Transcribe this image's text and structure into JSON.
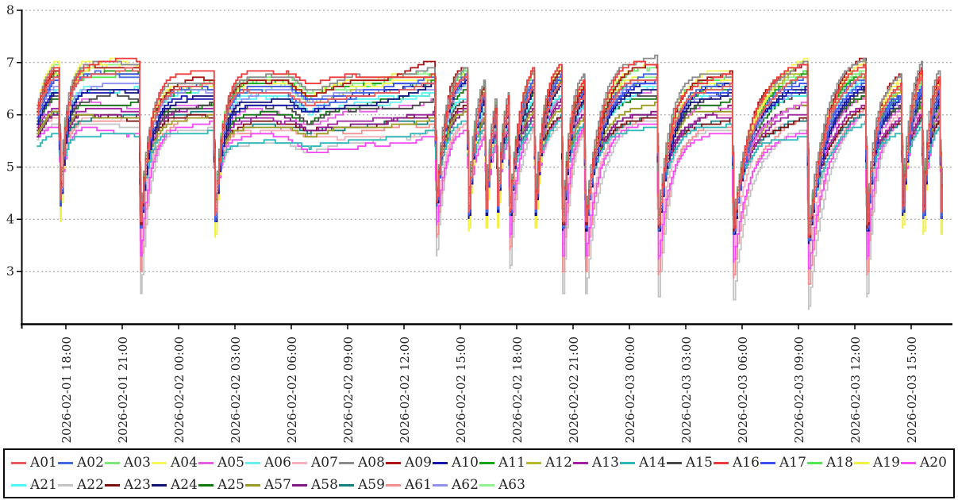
{
  "chart_data": {
    "type": "line",
    "title": "",
    "xlabel": "",
    "ylabel": "",
    "grid": "horizontal-dashed",
    "legend_position": "bottom",
    "x_axis": {
      "tick_hours": [
        18,
        21,
        24,
        27,
        30,
        33,
        36,
        39,
        42,
        45,
        48,
        51,
        54,
        57,
        60,
        63
      ],
      "tick_labels": [
        "2026-02-01 18:00",
        "2026-02-01 21:00",
        "2026-02-02 00:00",
        "2026-02-02 03:00",
        "2026-02-02 06:00",
        "2026-02-02 09:00",
        "2026-02-02 12:00",
        "2026-02-02 15:00",
        "2026-02-02 18:00",
        "2026-02-02 21:00",
        "2026-02-03 00:00",
        "2026-02-03 03:00",
        "2026-02-03 06:00",
        "2026-02-03 09:00",
        "2026-02-03 12:00",
        "2026-02-03 15:00"
      ],
      "data_hours_range": [
        16.45,
        64.75
      ]
    },
    "y_axis": {
      "tick_values": [
        3,
        4,
        5,
        6,
        7,
        8
      ],
      "range": [
        2,
        8
      ]
    },
    "colors": {
      "axis": "#000000",
      "grid": "#999999",
      "background": "#ffffff"
    },
    "envelope": [
      [
        16.45,
        5.4,
        0.8
      ],
      [
        16.9,
        5.55,
        1.2
      ],
      [
        17.3,
        5.6,
        1.4
      ],
      [
        18.6,
        5.55,
        1.5
      ],
      [
        21.85,
        5.5,
        1.55
      ],
      [
        22.7,
        5.65,
        1.1
      ],
      [
        25.8,
        5.7,
        1.05
      ],
      [
        27.0,
        5.4,
        1.4
      ],
      [
        29.8,
        5.4,
        1.4
      ],
      [
        30.9,
        5.25,
        1.25
      ],
      [
        32.0,
        5.35,
        1.3
      ],
      [
        34.5,
        5.4,
        1.38
      ],
      [
        36.8,
        5.5,
        1.4
      ],
      [
        37.55,
        5.6,
        1.35
      ],
      [
        38.6,
        5.8,
        1.2
      ],
      [
        39.3,
        5.8,
        1.2
      ],
      [
        40.2,
        5.75,
        1.15
      ],
      [
        41.5,
        5.7,
        1.15
      ],
      [
        42.85,
        5.8,
        1.25
      ],
      [
        44.3,
        5.85,
        1.25
      ],
      [
        45.5,
        5.8,
        1.1
      ],
      [
        47.4,
        5.75,
        1.3
      ],
      [
        49.4,
        5.75,
        1.3
      ],
      [
        51.2,
        5.7,
        1.15
      ],
      [
        53.4,
        5.7,
        1.15
      ],
      [
        55.4,
        5.55,
        1.35
      ],
      [
        57.4,
        5.6,
        1.5
      ],
      [
        60.45,
        5.95,
        1.2
      ],
      [
        61.6,
        5.75,
        1.0
      ],
      [
        62.4,
        5.8,
        0.95
      ],
      [
        63.45,
        5.9,
        1.15
      ],
      [
        64.4,
        5.9,
        1.1
      ],
      [
        64.8,
        5.85,
        1.05
      ]
    ],
    "dips": [
      {
        "t": 17.62,
        "min": 3.95,
        "tau": 0.3,
        "style": "shallow",
        "scale": 1
      },
      {
        "t": 21.89,
        "min": 2.55,
        "tau": 0.5,
        "style": "deep",
        "scale": 1
      },
      {
        "t": 25.85,
        "min": 3.65,
        "tau": 0.4,
        "style": "shallow",
        "scale": 1
      },
      {
        "t": 37.64,
        "min": 3.3,
        "tau": 0.45,
        "style": "deep",
        "scale": 0.75
      },
      {
        "t": 39.35,
        "min": 3.75,
        "tau": 0.38,
        "style": "shallow",
        "scale": 1
      },
      {
        "t": 40.28,
        "min": 3.8,
        "tau": 0.35,
        "style": "shallow",
        "scale": 1
      },
      {
        "t": 40.9,
        "min": 3.85,
        "tau": 0.32,
        "style": "shallow",
        "scale": 1
      },
      {
        "t": 41.55,
        "min": 3.05,
        "tau": 0.45,
        "style": "deep",
        "scale": 0.8
      },
      {
        "t": 42.9,
        "min": 3.8,
        "tau": 0.45,
        "style": "shallow",
        "scale": 1
      },
      {
        "t": 44.36,
        "min": 2.55,
        "tau": 0.42,
        "style": "deep",
        "scale": 1
      },
      {
        "t": 45.58,
        "min": 2.55,
        "tau": 0.75,
        "style": "deep",
        "scale": 1
      },
      {
        "t": 49.45,
        "min": 2.5,
        "tau": 0.7,
        "style": "deep",
        "scale": 1
      },
      {
        "t": 53.45,
        "min": 2.45,
        "tau": 0.85,
        "style": "deep",
        "scale": 1
      },
      {
        "t": 57.45,
        "min": 2.3,
        "tau": 0.9,
        "style": "deep",
        "scale": 1
      },
      {
        "t": 60.55,
        "min": 2.5,
        "tau": 0.5,
        "style": "deep",
        "scale": 1
      },
      {
        "t": 62.45,
        "min": 3.8,
        "tau": 0.38,
        "style": "shallow",
        "scale": 1
      },
      {
        "t": 63.55,
        "min": 3.7,
        "tau": 0.35,
        "style": "shallow",
        "scale": 1
      },
      {
        "t": 64.5,
        "min": 3.7,
        "tau": 0.28,
        "style": "shallow",
        "scale": 1
      }
    ],
    "series": [
      {
        "name": "A01",
        "color": "#e85b5b",
        "rank": 0.81,
        "ed": 1.4,
        "es": 0.4
      },
      {
        "name": "A02",
        "color": "#4169e1",
        "rank": 0.76,
        "ed": 1.3,
        "es": 0.35
      },
      {
        "name": "A03",
        "color": "#7ce87c",
        "rank": 0.89,
        "ed": 1.55,
        "es": 0.65
      },
      {
        "name": "A04",
        "color": "#f7f75a",
        "rank": 0.93,
        "ed": 1.32,
        "es": 0.05
      },
      {
        "name": "A05",
        "color": "#e060e0",
        "rank": 0.5,
        "ed": 1.5,
        "es": 0.7
      },
      {
        "name": "A06",
        "color": "#66f0f0",
        "rank": 0.63,
        "ed": 1.52,
        "es": 0.72
      },
      {
        "name": "A07",
        "color": "#f4b0bc",
        "rank": 0.18,
        "ed": 1.0,
        "es": 0.6
      },
      {
        "name": "A08",
        "color": "#8c8c8c",
        "rank": 1.0,
        "ed": 1.6,
        "es": 0.75
      },
      {
        "name": "A09",
        "color": "#aa1616",
        "rank": 0.97,
        "ed": 1.35,
        "es": 0.45
      },
      {
        "name": "A10",
        "color": "#1616aa",
        "rank": 0.66,
        "ed": 1.27,
        "es": 0.3
      },
      {
        "name": "A11",
        "color": "#16a316",
        "rank": 0.79,
        "ed": 1.55,
        "es": 0.68
      },
      {
        "name": "A12",
        "color": "#b8b82a",
        "rank": 0.83,
        "ed": 1.58,
        "es": 0.72
      },
      {
        "name": "A13",
        "color": "#a020a0",
        "rank": 0.29,
        "ed": 1.62,
        "es": 0.78
      },
      {
        "name": "A14",
        "color": "#2ab8b8",
        "rank": 0.0,
        "ed": 1.65,
        "es": 0.8
      },
      {
        "name": "A15",
        "color": "#484848",
        "rank": 0.56,
        "ed": 1.6,
        "es": 0.75
      },
      {
        "name": "A16",
        "color": "#ee3a3a",
        "rank": 0.95,
        "ed": 1.38,
        "es": 0.42
      },
      {
        "name": "A17",
        "color": "#3a50ee",
        "rank": 0.73,
        "ed": 1.28,
        "es": 0.32
      },
      {
        "name": "A18",
        "color": "#52e852",
        "rank": 0.85,
        "ed": 1.56,
        "es": 0.7
      },
      {
        "name": "A19",
        "color": "#f0f046",
        "rank": 0.91,
        "ed": 1.3,
        "es": 0.0
      },
      {
        "name": "A20",
        "color": "#f54af5",
        "rank": 0.07,
        "ed": 0.75,
        "es": 0.5
      },
      {
        "name": "A21",
        "color": "#50f5f5",
        "rank": 0.6,
        "ed": 1.58,
        "es": 0.74
      },
      {
        "name": "A22",
        "color": "#c4c4c4",
        "rank": 0.12,
        "ed": 0.0,
        "es": 0.55
      },
      {
        "name": "A23",
        "color": "#7a1010",
        "rank": 0.25,
        "ed": 1.66,
        "es": 0.82
      },
      {
        "name": "A24",
        "color": "#101078",
        "rank": 0.68,
        "ed": 1.25,
        "es": 0.28
      },
      {
        "name": "A25",
        "color": "#0e780e",
        "rank": 0.53,
        "ed": 1.63,
        "es": 0.79
      },
      {
        "name": "A57",
        "color": "#9a9a20",
        "rank": 0.35,
        "ed": 1.68,
        "es": 0.84
      },
      {
        "name": "A58",
        "color": "#801880",
        "rank": 0.32,
        "ed": 1.64,
        "es": 0.8
      },
      {
        "name": "A59",
        "color": "#108080",
        "rank": 0.22,
        "ed": 1.67,
        "es": 0.83
      },
      {
        "name": "A61",
        "color": "#f09090",
        "rank": 0.15,
        "ed": 0.45,
        "es": 0.5
      },
      {
        "name": "A62",
        "color": "#9090f0",
        "rank": 0.7,
        "ed": 1.35,
        "es": 0.45
      },
      {
        "name": "A63",
        "color": "#8ef08e",
        "rank": 0.87,
        "ed": 1.57,
        "es": 0.71
      }
    ],
    "draw_order": [
      "A22",
      "A61",
      "A07",
      "A20",
      "A59",
      "A23",
      "A13",
      "A58",
      "A57",
      "A05",
      "A25",
      "A15",
      "A21",
      "A06",
      "A63",
      "A18",
      "A03",
      "A12",
      "A11",
      "A62",
      "A14",
      "A04",
      "A19",
      "A24",
      "A10",
      "A17",
      "A02",
      "A09",
      "A08",
      "A16",
      "A01"
    ]
  }
}
